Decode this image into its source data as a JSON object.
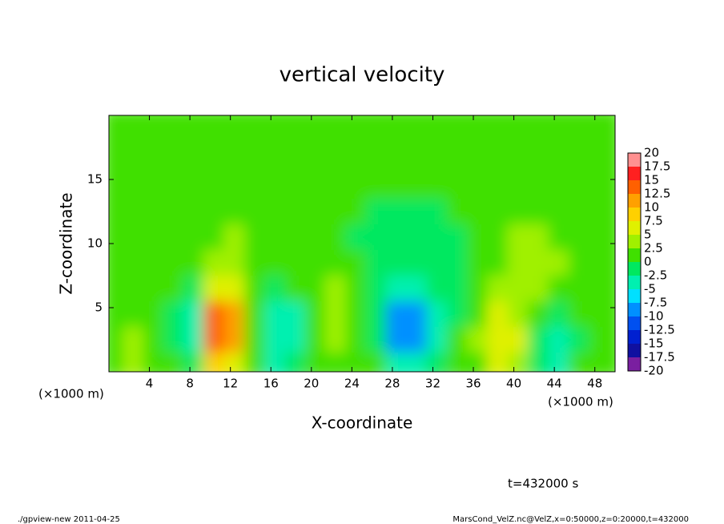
{
  "chart_data": {
    "type": "heatmap",
    "title": "vertical velocity",
    "x_label": "X-coordinate",
    "y_label": "Z-coordinate",
    "x_unit_label": "(×1000 m)",
    "y_unit_label": "(×1000 m)",
    "time_label": "t=432000 s",
    "footer_left": "./gpview-new  2011-04-25",
    "footer_right": "MarsCond_VelZ.nc@VelZ,x=0:50000,z=0:20000,t=432000",
    "xlim": [
      0,
      50
    ],
    "ylim": [
      0,
      20
    ],
    "xticks": [
      4,
      8,
      12,
      16,
      20,
      24,
      28,
      32,
      36,
      40,
      44,
      48
    ],
    "yticks": [
      5,
      10,
      15
    ],
    "x": [
      1,
      3,
      5,
      7,
      9,
      11,
      13,
      15,
      17,
      19,
      21,
      23,
      25,
      27,
      29,
      31,
      33,
      35,
      37,
      39,
      41,
      43,
      45,
      47,
      49
    ],
    "z": [
      1,
      3,
      5,
      7,
      9,
      11,
      13,
      15,
      17,
      19
    ],
    "values": [
      [
        2,
        3,
        1,
        0,
        -2,
        8,
        6,
        1,
        -3,
        -2,
        1,
        2,
        1,
        0,
        -4,
        -5,
        -2,
        1,
        2,
        5,
        4,
        -2,
        -4,
        0,
        1
      ],
      [
        1,
        3,
        1,
        -1,
        -4,
        13,
        11,
        1,
        -5,
        -3,
        1,
        3,
        2,
        -1,
        -9,
        -10,
        -4,
        0,
        3,
        7,
        5,
        -1,
        -5,
        -1,
        1
      ],
      [
        1,
        1,
        0,
        -2,
        -3,
        14,
        12,
        2,
        -4,
        -3,
        2,
        3,
        2,
        -2,
        -8,
        -9,
        -4,
        -1,
        2,
        5,
        4,
        2,
        -2,
        0,
        1
      ],
      [
        0,
        1,
        1,
        0,
        -1,
        6,
        5,
        1,
        -1,
        0,
        2,
        3,
        1,
        -2,
        -3,
        -3,
        -2,
        -1,
        2,
        3,
        4,
        4,
        2,
        1,
        1
      ],
      [
        1,
        1,
        2,
        1,
        0,
        3,
        3,
        1,
        0,
        1,
        1,
        1,
        0,
        -1,
        -2,
        -2,
        -2,
        -1,
        1,
        2,
        3,
        4,
        3,
        1,
        1
      ],
      [
        1,
        1,
        1,
        1,
        0,
        2,
        3,
        1,
        0,
        1,
        1,
        1,
        -1,
        -1,
        -2,
        -2,
        -2,
        -1,
        0,
        2,
        3,
        3,
        2,
        1,
        1
      ],
      [
        1,
        1,
        1,
        1,
        1,
        2,
        2,
        1,
        0,
        1,
        1,
        1,
        0,
        -1,
        -1,
        -1,
        -1,
        0,
        1,
        1,
        2,
        2,
        1,
        1,
        1
      ],
      [
        1,
        1,
        1,
        1,
        1,
        2,
        2,
        1,
        1,
        1,
        1,
        1,
        1,
        0,
        0,
        0,
        0,
        0,
        1,
        1,
        1,
        1,
        1,
        1,
        1
      ],
      [
        1,
        1,
        1,
        1,
        1,
        1,
        2,
        1,
        1,
        1,
        1,
        1,
        1,
        1,
        0,
        0,
        1,
        1,
        1,
        1,
        1,
        1,
        1,
        1,
        1
      ],
      [
        1,
        1,
        1,
        1,
        1,
        1,
        1,
        1,
        1,
        1,
        1,
        1,
        1,
        1,
        1,
        1,
        1,
        1,
        1,
        1,
        1,
        1,
        1,
        1,
        1
      ]
    ],
    "colorbar": {
      "levels": [
        -20,
        -17.5,
        -15,
        -12.5,
        -10,
        -7.5,
        -5,
        -2.5,
        0,
        2.5,
        5,
        7.5,
        10,
        12.5,
        15,
        17.5,
        20
      ],
      "colors": [
        "#7a1fa0",
        "#1010a0",
        "#0020d0",
        "#0050f0",
        "#0090ff",
        "#00e0ff",
        "#00f0b0",
        "#00e860",
        "#40e000",
        "#a0f000",
        "#e0f000",
        "#ffd000",
        "#ffa000",
        "#ff6000",
        "#ff2020",
        "#ff9090"
      ]
    }
  }
}
